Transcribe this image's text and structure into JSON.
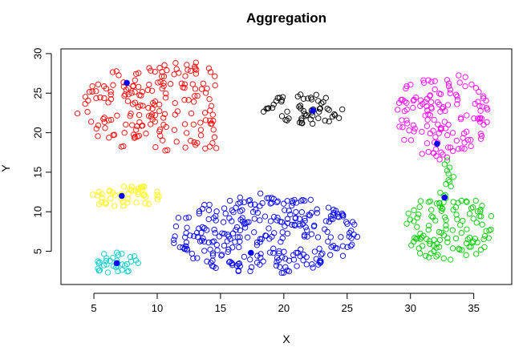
{
  "chart_data": {
    "type": "scatter",
    "title": "Aggregation",
    "xlabel": "X",
    "ylabel": "Y",
    "xlim": [
      2.4,
      38
    ],
    "ylim": [
      0.8,
      30.6
    ],
    "xticks": [
      5,
      10,
      15,
      20,
      25,
      30,
      35
    ],
    "yticks": [
      5,
      10,
      15,
      20,
      25,
      30
    ],
    "grid": false,
    "legend": "none",
    "clusters": [
      {
        "color": "#ff0000",
        "centroid": [
          7.6,
          26.3
        ],
        "count": 190,
        "region": {
          "shape": "poly",
          "points": [
            [
              3.4,
              23.5
            ],
            [
              4.5,
              25.8
            ],
            [
              6.5,
              27.8
            ],
            [
              9.5,
              28.6
            ],
            [
              12.5,
              29.0
            ],
            [
              14.5,
              28.6
            ],
            [
              14.7,
              27.0
            ],
            [
              14.4,
              24.0
            ],
            [
              14.5,
              20.5
            ],
            [
              15.4,
              17.3
            ],
            [
              12.0,
              17.6
            ],
            [
              10.0,
              17.0
            ],
            [
              8.3,
              17.3
            ],
            [
              6.8,
              18.0
            ],
            [
              5.2,
              19.6
            ],
            [
              3.8,
              21.5
            ]
          ]
        }
      },
      {
        "color": "#000000",
        "centroid": [
          22.3,
          22.8
        ],
        "count": 60,
        "region": {
          "shape": "ellipse",
          "cx": 21.8,
          "cy": 23.0,
          "rx": 3.5,
          "ry": 1.9
        }
      },
      {
        "color": "#ff00ff",
        "centroid": [
          32.1,
          18.6
        ],
        "count": 140,
        "region": {
          "shape": "ellipse",
          "cx": 32.5,
          "cy": 22.2,
          "rx": 3.7,
          "ry": 5.6
        }
      },
      {
        "color": "#ffff00",
        "centroid": [
          7.2,
          12.0
        ],
        "count": 45,
        "region": {
          "shape": "ellipse",
          "cx": 7.4,
          "cy": 12.0,
          "rx": 2.9,
          "ry": 1.5
        }
      },
      {
        "color": "#0000ff",
        "centroid": [
          17.4,
          4.8
        ],
        "count": 300,
        "region": {
          "shape": "ellipse",
          "cx": 18.5,
          "cy": 7.3,
          "rx": 7.5,
          "ry": 5.2
        }
      },
      {
        "color": "#00cccc",
        "centroid": [
          6.8,
          3.5
        ],
        "count": 34,
        "region": {
          "shape": "ellipse",
          "cx": 6.7,
          "cy": 3.5,
          "rx": 1.9,
          "ry": 1.4
        }
      },
      {
        "color": "#00cc00",
        "centroid": [
          32.7,
          11.8
        ],
        "count": 120,
        "region": {
          "shape": "ellipse",
          "cx": 33.0,
          "cy": 8.1,
          "rx": 3.6,
          "ry": 4.4
        }
      }
    ],
    "bridge_points": [
      [
        33.0,
        14.0
      ],
      [
        33.2,
        13.2
      ],
      [
        33.1,
        13.8
      ],
      [
        32.8,
        13.5
      ],
      [
        33.4,
        14.4
      ],
      [
        33.0,
        14.8
      ],
      [
        32.9,
        15.2
      ],
      [
        33.1,
        15.6
      ],
      [
        32.7,
        16.0
      ],
      [
        32.9,
        16.5
      ]
    ]
  }
}
